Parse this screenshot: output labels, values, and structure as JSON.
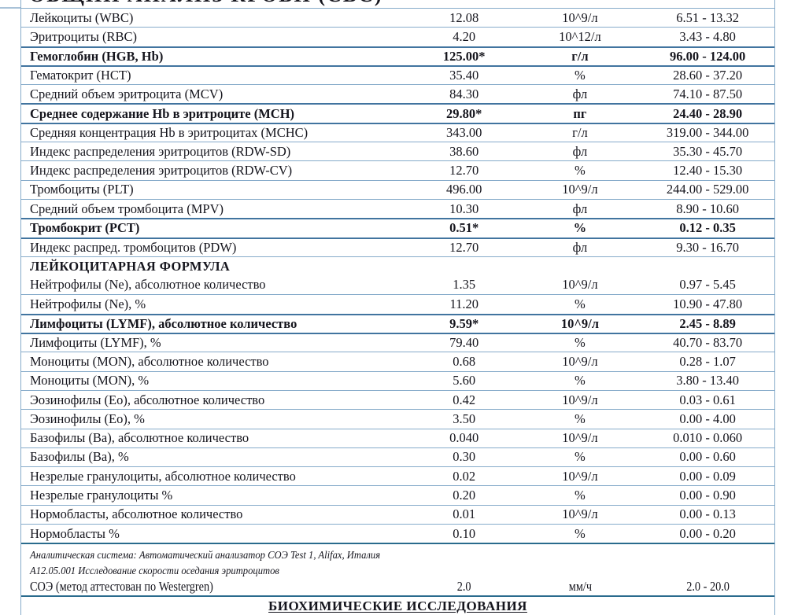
{
  "colors": {
    "border_light": "#86abca",
    "border_bold": "#41749f",
    "border_heavy": "#2a6b8d",
    "text": "#15151d",
    "background": "#ffffff"
  },
  "table": {
    "cut_title": "ОБЩИЙ АНАЛИЗ КРОВИ (CBC)",
    "rows": [
      {
        "type": "data",
        "name": "Лейкоциты (WBC)",
        "value": "12.08",
        "unit": "10^9/л",
        "range": "6.51 - 13.32",
        "bold": false
      },
      {
        "type": "data",
        "name": "Эритроциты (RBC)",
        "value": "4.20",
        "unit": "10^12/л",
        "range": "3.43 - 4.80",
        "bold": false
      },
      {
        "type": "data",
        "name": "Гемоглобин (HGB, Hb)",
        "value": "125.00*",
        "unit": "г/л",
        "range": "96.00 - 124.00",
        "bold": true
      },
      {
        "type": "data",
        "name": "Гематокрит (HCT)",
        "value": "35.40",
        "unit": "%",
        "range": "28.60 - 37.20",
        "bold": false
      },
      {
        "type": "data",
        "name": "Средний объем эритроцита (MCV)",
        "value": "84.30",
        "unit": "фл",
        "range": "74.10 - 87.50",
        "bold": false
      },
      {
        "type": "data",
        "name": "Среднее содержание Hb в эритроците (MCH)",
        "value": "29.80*",
        "unit": "пг",
        "range": "24.40 - 28.90",
        "bold": true
      },
      {
        "type": "data",
        "name": "Средняя концентрация Hb в эритроцитах (MCHC)",
        "value": "343.00",
        "unit": "г/л",
        "range": "319.00 - 344.00",
        "bold": false
      },
      {
        "type": "data",
        "name": "Индекс распределения эритроцитов (RDW-SD)",
        "value": "38.60",
        "unit": "фл",
        "range": "35.30 - 45.70",
        "bold": false
      },
      {
        "type": "data",
        "name": "Индекс распределения эритроцитов (RDW-CV)",
        "value": "12.70",
        "unit": "%",
        "range": "12.40 - 15.30",
        "bold": false
      },
      {
        "type": "data",
        "name": "Тромбоциты (PLT)",
        "value": "496.00",
        "unit": "10^9/л",
        "range": "244.00 - 529.00",
        "bold": false
      },
      {
        "type": "data",
        "name": "Средний объем тромбоцита (MPV)",
        "value": "10.30",
        "unit": "фл",
        "range": "8.90 - 10.60",
        "bold": false
      },
      {
        "type": "data",
        "name": "Тромбокрит (PCT)",
        "value": "0.51*",
        "unit": "%",
        "range": "0.12 - 0.35",
        "bold": true
      },
      {
        "type": "data",
        "name": "Индекс распред. тромбоцитов (PDW)",
        "value": "12.70",
        "unit": "фл",
        "range": "9.30 - 16.70",
        "bold": false
      },
      {
        "type": "section",
        "name": "ЛЕЙКОЦИТАРНАЯ ФОРМУЛА"
      },
      {
        "type": "data",
        "name": "Нейтрофилы (Ne), абсолютное количество",
        "value": "1.35",
        "unit": "10^9/л",
        "range": "0.97 - 5.45",
        "bold": false
      },
      {
        "type": "data",
        "name": "Нейтрофилы (Ne), %",
        "value": "11.20",
        "unit": "%",
        "range": "10.90 - 47.80",
        "bold": false
      },
      {
        "type": "data",
        "name": "Лимфоциты (LYMF), абсолютное количество",
        "value": "9.59*",
        "unit": "10^9/л",
        "range": "2.45 - 8.89",
        "bold": true
      },
      {
        "type": "data",
        "name": "Лимфоциты (LYMF), %",
        "value": "79.40",
        "unit": "%",
        "range": "40.70 - 83.70",
        "bold": false
      },
      {
        "type": "data",
        "name": "Моноциты (MON), абсолютное количество",
        "value": "0.68",
        "unit": "10^9/л",
        "range": "0.28 - 1.07",
        "bold": false
      },
      {
        "type": "data",
        "name": "Моноциты (MON), %",
        "value": "5.60",
        "unit": "%",
        "range": "3.80 - 13.40",
        "bold": false
      },
      {
        "type": "data",
        "name": "Эозинофилы (Eo), абсолютное количество",
        "value": "0.42",
        "unit": "10^9/л",
        "range": "0.03 - 0.61",
        "bold": false
      },
      {
        "type": "data",
        "name": "Эозинофилы (Eo), %",
        "value": "3.50",
        "unit": "%",
        "range": "0.00 - 4.00",
        "bold": false
      },
      {
        "type": "data",
        "name": "Базофилы (Ba), абсолютное количество",
        "value": "0.040",
        "unit": "10^9/л",
        "range": "0.010 - 0.060",
        "bold": false
      },
      {
        "type": "data",
        "name": "Базофилы (Ba), %",
        "value": "0.30",
        "unit": "%",
        "range": "0.00 - 0.60",
        "bold": false
      },
      {
        "type": "data",
        "name": "Незрелые гранулоциты, абсолютное количество",
        "value": "0.02",
        "unit": "10^9/л",
        "range": "0.00 - 0.09",
        "bold": false
      },
      {
        "type": "data",
        "name": "Незрелые гранулоциты %",
        "value": "0.20",
        "unit": "%",
        "range": "0.00 - 0.90",
        "bold": false
      },
      {
        "type": "data",
        "name": "Нормобласты, абсолютное количество",
        "value": "0.01",
        "unit": "10^9/л",
        "range": "0.00 - 0.13",
        "bold": false
      },
      {
        "type": "data",
        "name": "Нормобласты %",
        "value": "0.10",
        "unit": "%",
        "range": "0.00 - 0.20",
        "bold": false
      }
    ],
    "footnotes": {
      "line1": "Аналитическая система: Автоматический анализатор СОЭ Test 1, Alifax, Италия",
      "line2": "А12.05.001 Исследование скорости оседания эритроцитов"
    },
    "soe_row": {
      "name": "СОЭ (метод аттестован по Westergren)",
      "value": "2.0",
      "unit": "мм/ч",
      "range": "2.0 - 20.0"
    },
    "bottom_header": "БИОХИМИЧЕСКИЕ ИССЛЕДОВАНИЯ"
  }
}
